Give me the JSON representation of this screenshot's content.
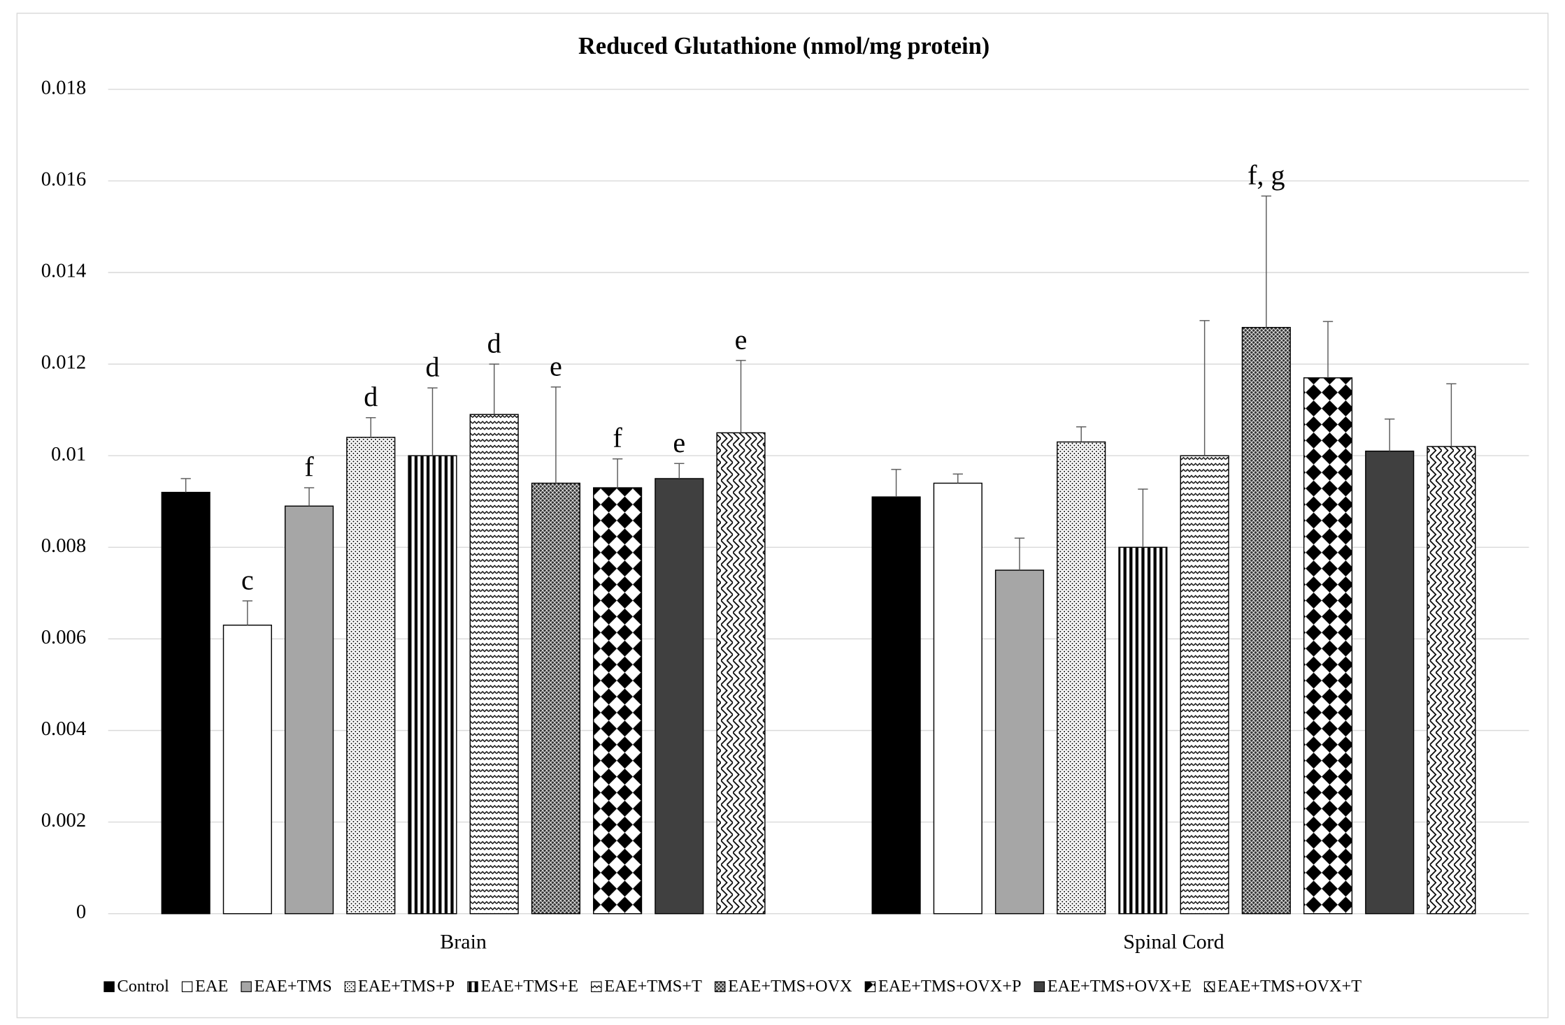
{
  "chart_data": {
    "type": "bar",
    "title": "Reduced Glutathione (nmol/mg protein)",
    "categories": [
      "Brain",
      "Spinal Cord"
    ],
    "ylim": [
      0,
      0.018
    ],
    "yticks": [
      0,
      0.002,
      0.004,
      0.006,
      0.008,
      0.01,
      0.012,
      0.014,
      0.016,
      0.018
    ],
    "grid": true,
    "legend": "bottom",
    "series": [
      {
        "name": "Control",
        "color": "#000000",
        "values": [
          0.0092,
          0.0091
        ],
        "errors": [
          0.0003,
          0.0006
        ],
        "letters": [
          null,
          null
        ]
      },
      {
        "name": "EAE",
        "color": "#ffffff",
        "values": [
          0.0063,
          0.0094
        ],
        "errors": [
          0.00053,
          0.0002
        ],
        "letters": [
          "c",
          null
        ]
      },
      {
        "name": "EAE+TMS",
        "color": "#a6a6a6",
        "values": [
          0.0089,
          0.0075
        ],
        "errors": [
          0.0004,
          0.0007
        ],
        "letters": [
          "f",
          null
        ]
      },
      {
        "name": "EAE+TMS+P",
        "color": "#000000",
        "pattern": "dots",
        "values": [
          0.0104,
          0.0103
        ],
        "errors": [
          0.00043,
          0.00033
        ],
        "letters": [
          "d",
          null
        ]
      },
      {
        "name": "EAE+TMS+E",
        "color": "#000000",
        "pattern": "vstripes",
        "values": [
          0.01,
          0.008
        ],
        "errors": [
          0.00148,
          0.00127
        ],
        "letters": [
          "d",
          null
        ]
      },
      {
        "name": "EAE+TMS+T",
        "color": "#000000",
        "pattern": "waves",
        "values": [
          0.0109,
          0.01
        ],
        "errors": [
          0.0011,
          0.00295
        ],
        "letters": [
          "d",
          null
        ]
      },
      {
        "name": "EAE+TMS+OVX",
        "color": "#000000",
        "pattern": "crosshatch",
        "values": [
          0.0094,
          0.0128
        ],
        "errors": [
          0.0021,
          0.00287
        ],
        "letters": [
          "e",
          "f, g"
        ]
      },
      {
        "name": "EAE+TMS+OVX+P",
        "color": "#000000",
        "pattern": "diamonds",
        "values": [
          0.0093,
          0.0117
        ],
        "errors": [
          0.00063,
          0.00123
        ],
        "letters": [
          "f",
          null
        ]
      },
      {
        "name": "EAE+TMS+OVX+E",
        "color": "#404040",
        "values": [
          0.0095,
          0.0101
        ],
        "errors": [
          0.00033,
          0.0007
        ],
        "letters": [
          "e",
          null
        ]
      },
      {
        "name": "EAE+TMS+OVX+T",
        "color": "#000000",
        "pattern": "zigzag",
        "values": [
          0.0105,
          0.0102
        ],
        "errors": [
          0.00158,
          0.00137
        ],
        "letters": [
          "e",
          null
        ]
      }
    ]
  }
}
